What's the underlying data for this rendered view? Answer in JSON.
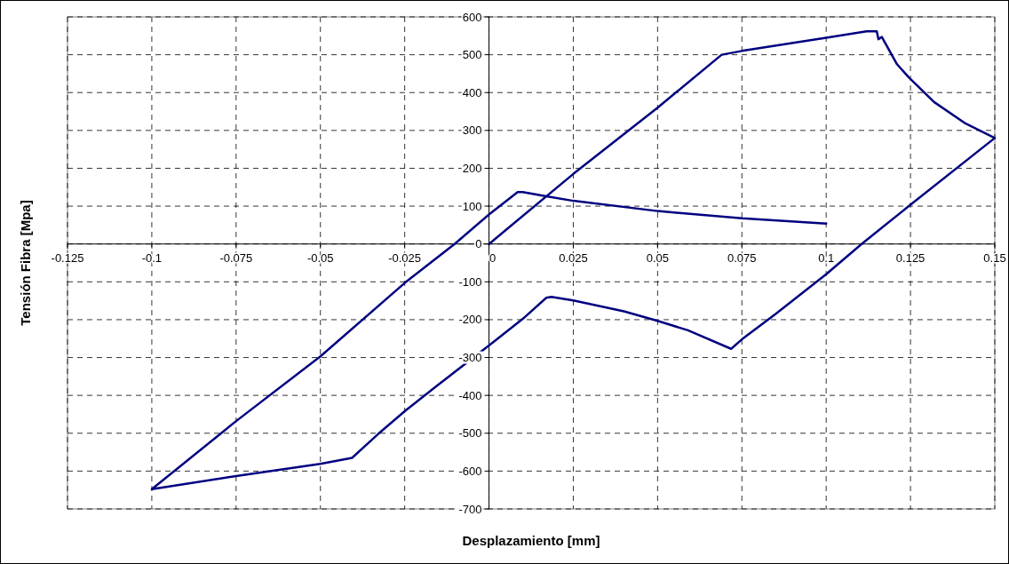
{
  "chart_data": {
    "type": "line",
    "xlabel": "Desplazamiento [mm]",
    "ylabel": "Tensión Fibra [Mpa]",
    "xlim": [
      -0.125,
      0.15
    ],
    "xticks": [
      -0.125,
      -0.1,
      -0.075,
      -0.05,
      -0.025,
      0,
      0.025,
      0.05,
      0.075,
      0.1,
      0.125,
      0.15
    ],
    "ylim": [
      -700,
      600
    ],
    "yticks": [
      -700,
      -600,
      -500,
      -400,
      -300,
      -200,
      -100,
      0,
      100,
      200,
      300,
      400,
      500,
      600
    ],
    "grid": true,
    "marker": "none",
    "line_style": "solid",
    "series": [
      {
        "color": "#000080",
        "x": [
          0,
          0.025,
          0.05,
          0.069,
          0.075,
          0.1,
          0.112,
          0.115,
          0.1155,
          0.1165,
          0.121,
          0.1245,
          0.132,
          0.141,
          0.15,
          0.1245,
          0.1105,
          0.1,
          0.085,
          0.075,
          0.0718,
          0.059,
          0.05,
          0.04,
          0.025,
          0.0185,
          0.017,
          0.01,
          0.001,
          -0.0155,
          -0.025,
          -0.033,
          -0.0406,
          -0.05,
          -0.075,
          -0.1,
          -0.075,
          -0.05,
          -0.025,
          -0.0102,
          0,
          0.0085,
          0.01,
          0.017,
          0.025,
          0.05,
          0.075,
          0.1
        ],
        "values": [
          0,
          185,
          360,
          500,
          510,
          545,
          562,
          562,
          541,
          547,
          475,
          440,
          375,
          320,
          280,
          100,
          0,
          -80,
          -185,
          -252,
          -277,
          -228,
          -203,
          -178,
          -149,
          -140,
          -142,
          -198,
          -261,
          -375,
          -442,
          -503,
          -565,
          -581,
          -613,
          -648,
          -468,
          -297,
          -103,
          0,
          78,
          137,
          137,
          126,
          114,
          87,
          68,
          54
        ]
      }
    ]
  }
}
